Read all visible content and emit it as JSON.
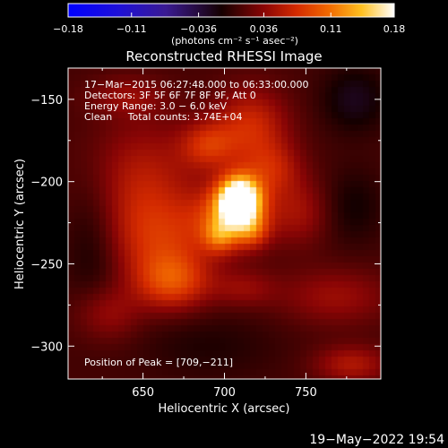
{
  "chart_data": {
    "type": "heatmap",
    "title": "Reconstructed RHESSI Image",
    "xlabel": "Heliocentric X (arcsec)",
    "ylabel": "Heliocentric Y (arcsec)",
    "xlim": [
      604,
      796
    ],
    "ylim": [
      -320,
      -131
    ],
    "x_ticks": [
      650,
      700,
      750
    ],
    "y_ticks": [
      -150,
      -200,
      -250,
      -300
    ],
    "x_tick_labels": [
      "650",
      "700",
      "750"
    ],
    "y_tick_labels": [
      "−150",
      "−200",
      "−250",
      "−300"
    ],
    "colorbar": {
      "range": [
        -0.18,
        0.18
      ],
      "ticks": [
        -0.18,
        -0.11,
        -0.036,
        0.036,
        0.11,
        0.18
      ],
      "tick_labels": [
        "−0.18",
        "−0.11",
        "−0.036",
        "0.036",
        "0.11",
        "0.18"
      ],
      "units_label": "(photons cm⁻² s⁻¹ asec⁻²)"
    },
    "annotations": [
      "17−Mar−2015 06:27:48.000 to 06:33:00.000",
      "Detectors: 3F 5F 6F 7F 8F 9F, Att 0",
      "Energy Range: 3.0 − 6.0 keV",
      "Clean     Total counts: 3.74E+04"
    ],
    "peak_label": "Position of Peak = [709,−211]",
    "peak": [
      709,
      -211
    ],
    "sources": [
      {
        "x": 709,
        "y": -211,
        "sx": 9,
        "sy": 10,
        "amp": 0.2
      },
      {
        "x": 705,
        "y": -222,
        "sx": 16,
        "sy": 13,
        "amp": 0.085
      },
      {
        "x": 697,
        "y": -233,
        "sx": 7,
        "sy": 7,
        "amp": 0.055
      },
      {
        "x": 717,
        "y": -230,
        "sx": 7,
        "sy": 7,
        "amp": 0.045
      },
      {
        "x": 650,
        "y": -203,
        "sx": 24,
        "sy": 28,
        "amp": 0.05
      },
      {
        "x": 662,
        "y": -237,
        "sx": 22,
        "sy": 18,
        "amp": 0.045
      },
      {
        "x": 668,
        "y": -261,
        "sx": 16,
        "sy": 12,
        "amp": 0.07
      },
      {
        "x": 628,
        "y": -280,
        "sx": 14,
        "sy": 12,
        "amp": 0.035
      },
      {
        "x": 690,
        "y": -178,
        "sx": 12,
        "sy": 10,
        "amp": 0.055
      },
      {
        "x": 716,
        "y": -166,
        "sx": 16,
        "sy": 16,
        "amp": 0.06
      },
      {
        "x": 729,
        "y": -193,
        "sx": 13,
        "sy": 12,
        "amp": 0.05
      },
      {
        "x": 746,
        "y": -219,
        "sx": 12,
        "sy": 14,
        "amp": 0.035
      },
      {
        "x": 768,
        "y": -270,
        "sx": 24,
        "sy": 12,
        "amp": 0.035
      },
      {
        "x": 712,
        "y": -265,
        "sx": 14,
        "sy": 8,
        "amp": 0.03
      },
      {
        "x": 778,
        "y": -311,
        "sx": 16,
        "sy": 8,
        "amp": 0.045
      },
      {
        "x": 640,
        "y": -148,
        "sx": 16,
        "sy": 8,
        "amp": 0.03
      },
      {
        "x": 780,
        "y": -150,
        "sx": 14,
        "sy": 14,
        "amp": -0.03
      },
      {
        "x": 620,
        "y": -235,
        "sx": 12,
        "sy": 30,
        "amp": -0.025
      },
      {
        "x": 780,
        "y": -215,
        "sx": 12,
        "sy": 16,
        "amp": -0.02
      },
      {
        "x": 690,
        "y": -300,
        "sx": 30,
        "sy": 14,
        "amp": -0.015
      }
    ]
  },
  "footer": {
    "timestamp": "19−May−2022 19:54"
  }
}
